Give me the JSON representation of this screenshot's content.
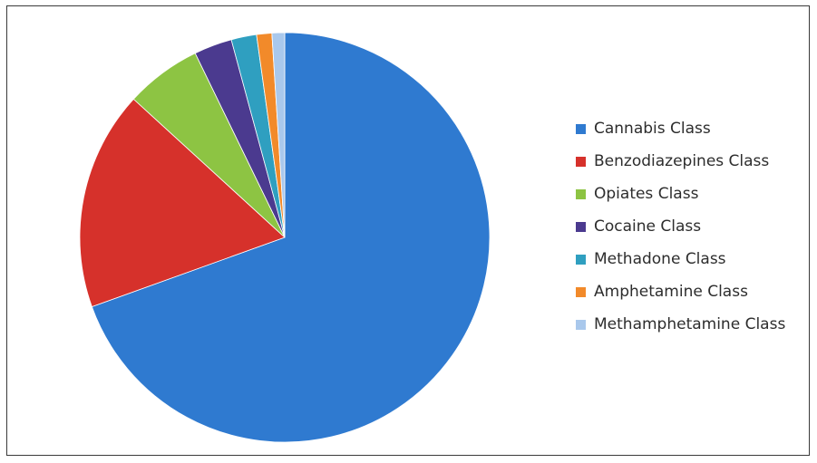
{
  "chart_data": {
    "type": "pie",
    "title": "",
    "legend_position": "right",
    "slices": [
      {
        "label": "Cannabis Class",
        "value": 69.5,
        "color": "#2f7ad0"
      },
      {
        "label": "Benzodiazepines Class",
        "value": 17.3,
        "color": "#d6312b"
      },
      {
        "label": "Opiates Class",
        "value": 6.0,
        "color": "#8dc443"
      },
      {
        "label": "Cocaine Class",
        "value": 3.0,
        "color": "#4b3a8f"
      },
      {
        "label": "Methadone Class",
        "value": 2.0,
        "color": "#2f9fc0"
      },
      {
        "label": "Amphetamine Class",
        "value": 1.2,
        "color": "#f28a2a"
      },
      {
        "label": "Methamphetamine Class",
        "value": 1.0,
        "color": "#a9c8ec"
      }
    ]
  }
}
